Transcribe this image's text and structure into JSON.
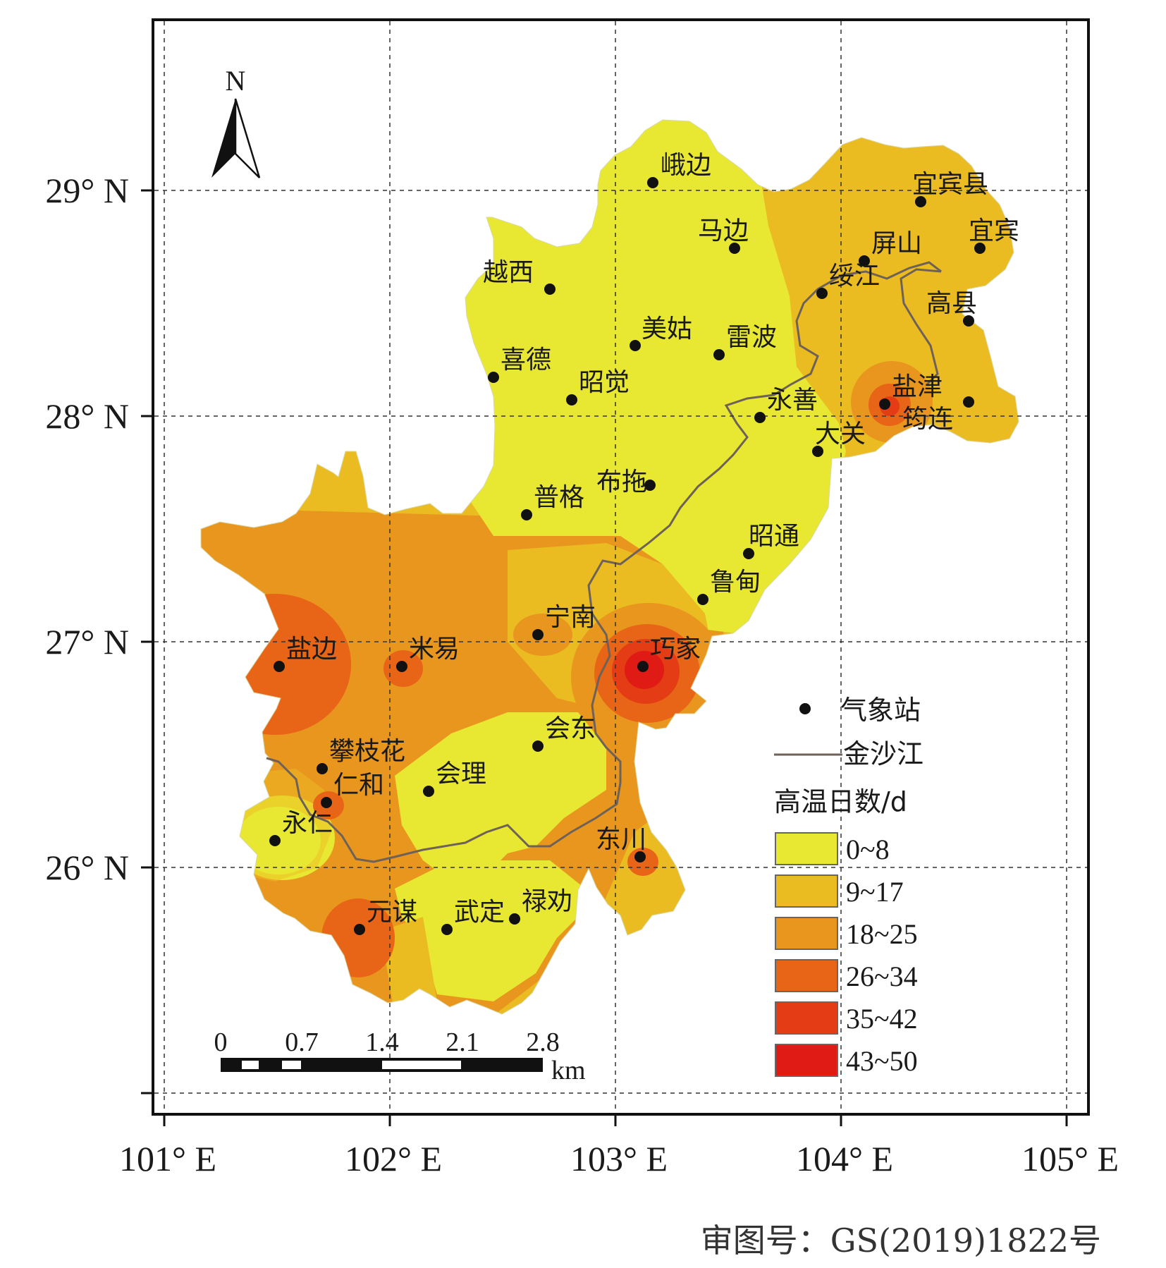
{
  "map": {
    "north_label": "N",
    "lat_labels": [
      "29° N",
      "28° N",
      "27° N",
      "26° N"
    ],
    "lon_labels": [
      "101° E",
      "102° E",
      "103° E",
      "104° E",
      "105° E"
    ],
    "approval_number": "审图号：GS(2019)1822号"
  },
  "colors": {
    "class_0_8": "#e8e832",
    "class_9_17": "#ebbc22",
    "class_18_25": "#e8961e",
    "class_26_34": "#e86416",
    "class_35_42": "#e43c14",
    "class_43_50": "#e01a14",
    "river": "#6e6258",
    "station": "#111111"
  },
  "stations": [
    {
      "name": "峨边"
    },
    {
      "name": "马边"
    },
    {
      "name": "越西"
    },
    {
      "name": "美姑"
    },
    {
      "name": "雷波"
    },
    {
      "name": "喜德"
    },
    {
      "name": "昭觉"
    },
    {
      "name": "宜宾县"
    },
    {
      "name": "宜宾"
    },
    {
      "name": "屏山"
    },
    {
      "name": "绥江"
    },
    {
      "name": "高县"
    },
    {
      "name": "盐津"
    },
    {
      "name": "筠连"
    },
    {
      "name": "永善"
    },
    {
      "name": "大关"
    },
    {
      "name": "普格"
    },
    {
      "name": "布拖"
    },
    {
      "name": "昭通"
    },
    {
      "name": "鲁甸"
    },
    {
      "name": "宁南"
    },
    {
      "name": "巧家"
    },
    {
      "name": "盐边"
    },
    {
      "name": "米易"
    },
    {
      "name": "会东"
    },
    {
      "name": "攀枝花"
    },
    {
      "name": "仁和"
    },
    {
      "name": "会理"
    },
    {
      "name": "永仁"
    },
    {
      "name": "东川"
    },
    {
      "name": "元谋"
    },
    {
      "name": "武定"
    },
    {
      "name": "禄劝"
    }
  ],
  "legend": {
    "station_label": "气象站",
    "river_label": "金沙江",
    "title": "高温日数/d",
    "classes": [
      "0~8",
      "9~17",
      "18~25",
      "26~34",
      "35~42",
      "43~50"
    ]
  },
  "scale_bar": {
    "labels": [
      "0",
      "0.7",
      "1.4",
      "2.1",
      "2.8"
    ],
    "unit": "km"
  }
}
